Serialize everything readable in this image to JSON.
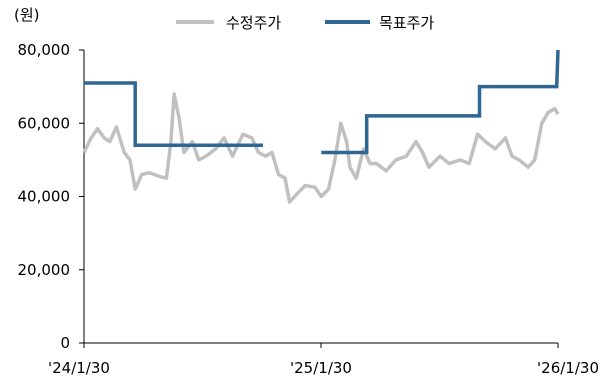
{
  "chart_data": {
    "type": "line",
    "unit_label": "(원)",
    "x_tick_labels": [
      "'24/1/30",
      "'25/1/30",
      "'26/1/30"
    ],
    "y_ticks": [
      0,
      20000,
      40000,
      60000,
      80000
    ],
    "y_tick_labels": [
      "0",
      "20,000",
      "40,000",
      "60,000",
      "80,000"
    ],
    "ylim": [
      0,
      80000
    ],
    "x_range": [
      "2024-01-30",
      "2026-01-30"
    ],
    "legend_position": "top-center",
    "grid": false,
    "series": [
      {
        "name": "수정주가",
        "color": "#c0c0c0",
        "style": "line",
        "points": [
          [
            "2024-01-30",
            52000
          ],
          [
            "2024-02-10",
            56000
          ],
          [
            "2024-02-20",
            58500
          ],
          [
            "2024-03-01",
            56000
          ],
          [
            "2024-03-10",
            55000
          ],
          [
            "2024-03-20",
            59000
          ],
          [
            "2024-04-01",
            52000
          ],
          [
            "2024-04-10",
            50000
          ],
          [
            "2024-04-18",
            42000
          ],
          [
            "2024-04-28",
            46000
          ],
          [
            "2024-05-10",
            46500
          ],
          [
            "2024-05-25",
            45500
          ],
          [
            "2024-06-05",
            45000
          ],
          [
            "2024-06-12",
            55000
          ],
          [
            "2024-06-17",
            68000
          ],
          [
            "2024-06-24",
            62000
          ],
          [
            "2024-07-02",
            52000
          ],
          [
            "2024-07-15",
            55000
          ],
          [
            "2024-07-25",
            50000
          ],
          [
            "2024-08-05",
            51000
          ],
          [
            "2024-08-20",
            53000
          ],
          [
            "2024-09-02",
            56000
          ],
          [
            "2024-09-15",
            51000
          ],
          [
            "2024-10-01",
            57000
          ],
          [
            "2024-10-15",
            56000
          ],
          [
            "2024-10-25",
            52000
          ],
          [
            "2024-11-05",
            51000
          ],
          [
            "2024-11-15",
            52000
          ],
          [
            "2024-11-25",
            46000
          ],
          [
            "2024-12-05",
            45000
          ],
          [
            "2024-12-12",
            38500
          ],
          [
            "2024-12-25",
            41000
          ],
          [
            "2025-01-05",
            43000
          ],
          [
            "2025-01-20",
            42500
          ],
          [
            "2025-01-30",
            40000
          ],
          [
            "2025-02-10",
            42000
          ],
          [
            "2025-02-20",
            50000
          ],
          [
            "2025-03-01",
            60000
          ],
          [
            "2025-03-10",
            55000
          ],
          [
            "2025-03-15",
            48000
          ],
          [
            "2025-03-25",
            45000
          ],
          [
            "2025-04-05",
            53000
          ],
          [
            "2025-04-15",
            49000
          ],
          [
            "2025-04-25",
            49000
          ],
          [
            "2025-05-10",
            47000
          ],
          [
            "2025-05-25",
            50000
          ],
          [
            "2025-06-10",
            51000
          ],
          [
            "2025-06-25",
            55000
          ],
          [
            "2025-07-05",
            52000
          ],
          [
            "2025-07-15",
            48000
          ],
          [
            "2025-08-01",
            51000
          ],
          [
            "2025-08-15",
            49000
          ],
          [
            "2025-09-01",
            50000
          ],
          [
            "2025-09-15",
            49000
          ],
          [
            "2025-09-28",
            57000
          ],
          [
            "2025-10-10",
            55000
          ],
          [
            "2025-10-25",
            53000
          ],
          [
            "2025-11-10",
            56000
          ],
          [
            "2025-11-20",
            51000
          ],
          [
            "2025-12-01",
            50000
          ],
          [
            "2025-12-15",
            48000
          ],
          [
            "2025-12-25",
            50000
          ],
          [
            "2026-01-05",
            60000
          ],
          [
            "2026-01-15",
            63000
          ],
          [
            "2026-01-25",
            64000
          ],
          [
            "2026-01-30",
            62500
          ]
        ]
      },
      {
        "name": "목표주가",
        "color": "#2e6694",
        "style": "step",
        "segments": [
          [
            [
              "2024-01-30",
              71000
            ],
            [
              "2024-04-18",
              71000
            ],
            [
              "2024-04-18",
              54000
            ],
            [
              "2024-11-01",
              54000
            ]
          ],
          [
            [
              "2025-01-30",
              52000
            ],
            [
              "2025-04-10",
              52000
            ],
            [
              "2025-04-10",
              62000
            ],
            [
              "2025-10-01",
              62000
            ],
            [
              "2025-10-01",
              70000
            ],
            [
              "2026-01-28",
              70000
            ],
            [
              "2026-01-30",
              80000
            ]
          ]
        ]
      }
    ]
  }
}
